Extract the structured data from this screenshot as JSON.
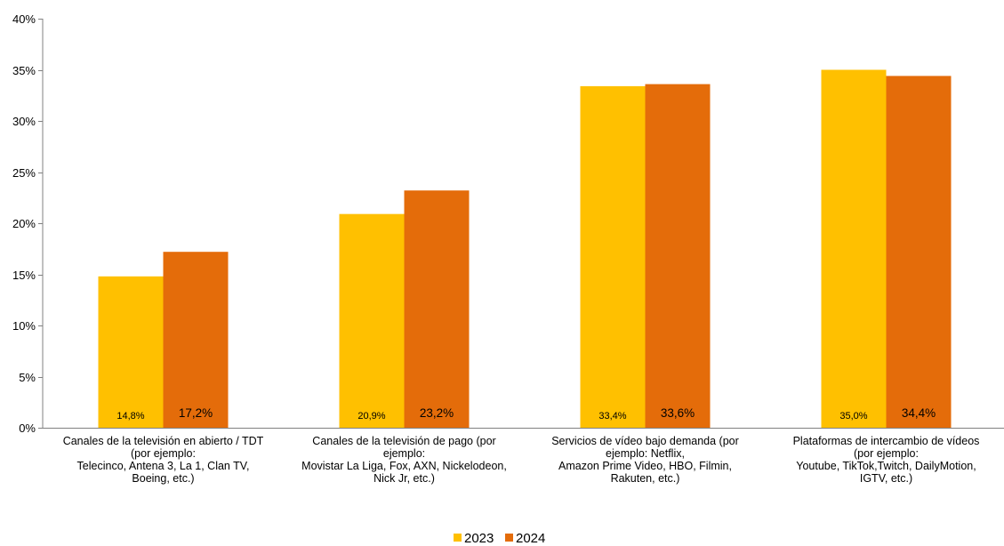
{
  "chart_data": {
    "type": "bar",
    "categories": [
      [
        "Canales de la televisión en abierto / TDT",
        "(por ejemplo:",
        "Telecinco, Antena 3, La 1, Clan TV,",
        "Boeing, etc.)"
      ],
      [
        "Canales de la televisión de pago (por",
        "ejemplo:",
        "Movistar La Liga, Fox, AXN, Nickelodeon,",
        "Nick Jr, etc.)"
      ],
      [
        "Servicios de vídeo bajo demanda (por",
        "ejemplo: Netflix,",
        "Amazon Prime Video, HBO, Filmin,",
        "Rakuten, etc.)"
      ],
      [
        "Plataformas de intercambio de vídeos",
        "(por ejemplo:",
        "Youtube, TikTok,Twitch, DailyMotion,",
        "IGTV, etc.)"
      ]
    ],
    "series": [
      {
        "name": "2023",
        "color": "#FFC000",
        "values": [
          14.8,
          20.9,
          33.4,
          35.0
        ],
        "labels": [
          "14,8%",
          "20,9%",
          "33,4%",
          "35,0%"
        ]
      },
      {
        "name": "2024",
        "color": "#E46C0A",
        "values": [
          17.2,
          23.2,
          33.6,
          34.4
        ],
        "labels": [
          "17,2%",
          "23,2%",
          "33,6%",
          "34,4%"
        ]
      }
    ],
    "ylim": [
      0,
      40
    ],
    "yticks": [
      "0%",
      "5%",
      "10%",
      "15%",
      "20%",
      "25%",
      "30%",
      "35%",
      "40%"
    ],
    "grid": false,
    "legend": "bottom-center",
    "title": "",
    "xlabel": "",
    "ylabel": ""
  }
}
